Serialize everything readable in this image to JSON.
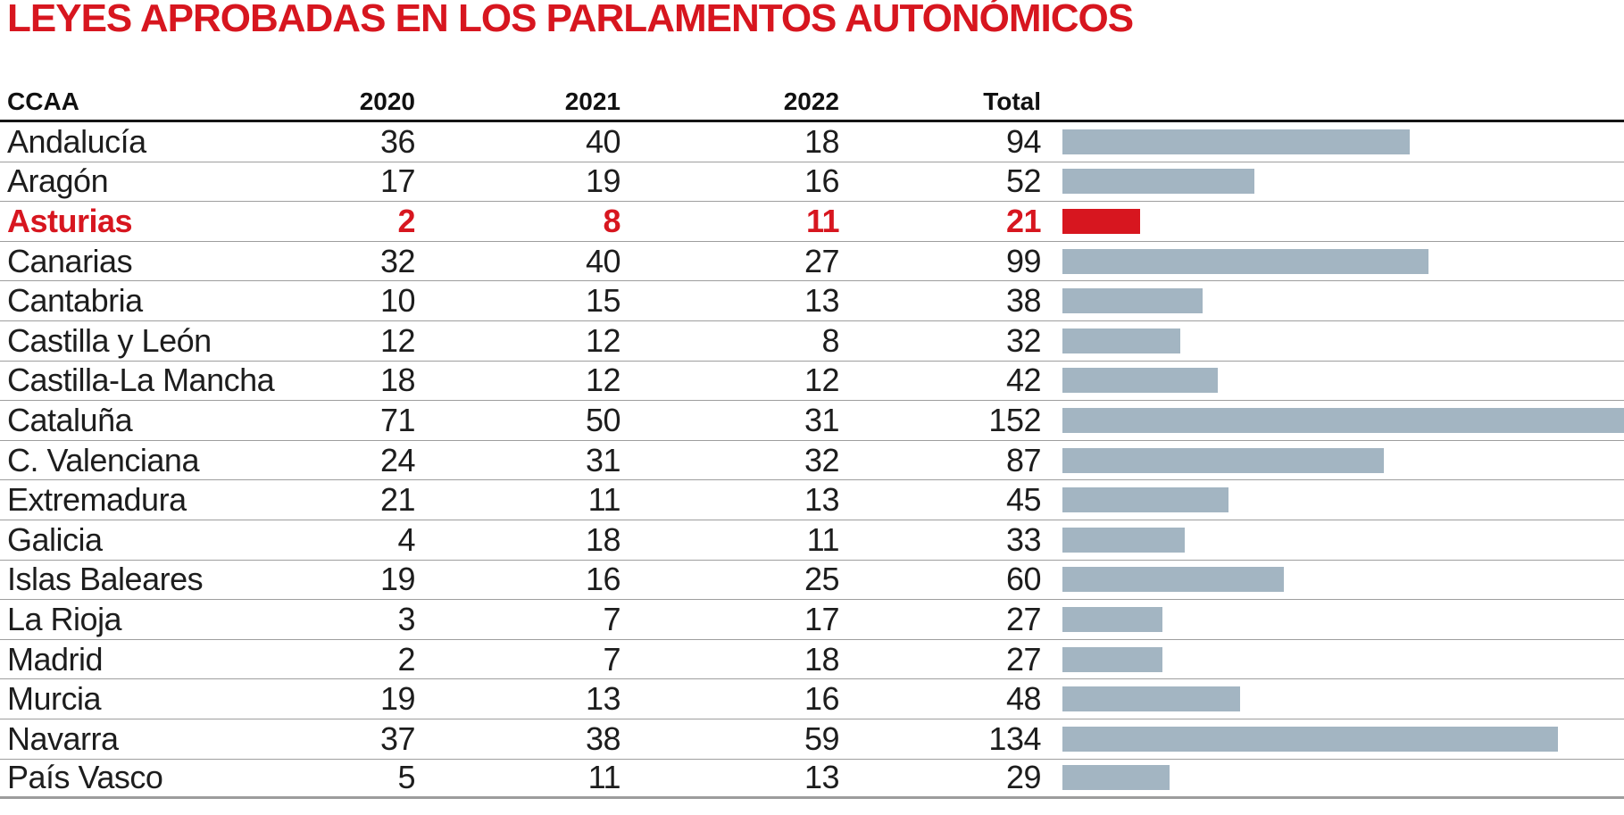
{
  "title": "LEYES APROBADAS EN LOS PARLAMENTOS AUTONÓMICOS",
  "colors": {
    "accent_red": "#d7161f",
    "bar_blue": "#a3b5c2",
    "header_rule": "#151515",
    "row_rule": "#9e9e9e"
  },
  "table": {
    "columns": [
      "CCAA",
      "2020",
      "2021",
      "2022",
      "Total"
    ]
  },
  "chart_data": {
    "type": "bar",
    "orientation": "horizontal",
    "title": "LEYES APROBADAS EN LOS PARLAMENTOS AUTONÓMICOS",
    "categories": [
      "Andalucía",
      "Aragón",
      "Asturias",
      "Canarias",
      "Cantabria",
      "Castilla y León",
      "Castilla-La Mancha",
      "Cataluña",
      "C. Valenciana",
      "Extremadura",
      "Galicia",
      "Islas Baleares",
      "La Rioja",
      "Madrid",
      "Murcia",
      "Navarra",
      "País Vasco"
    ],
    "series": [
      {
        "name": "2020",
        "values": [
          36,
          17,
          2,
          32,
          10,
          12,
          18,
          71,
          24,
          21,
          4,
          19,
          3,
          2,
          19,
          37,
          5
        ]
      },
      {
        "name": "2021",
        "values": [
          40,
          19,
          8,
          40,
          15,
          12,
          12,
          50,
          31,
          11,
          18,
          16,
          7,
          7,
          13,
          38,
          11
        ]
      },
      {
        "name": "2022",
        "values": [
          18,
          16,
          11,
          27,
          13,
          8,
          12,
          31,
          32,
          13,
          11,
          25,
          17,
          18,
          16,
          59,
          13
        ]
      },
      {
        "name": "Total",
        "values": [
          94,
          52,
          21,
          99,
          38,
          32,
          42,
          152,
          87,
          45,
          33,
          60,
          27,
          27,
          48,
          134,
          29
        ]
      }
    ],
    "bars_plotted_from": "Total",
    "xlim": [
      0,
      152
    ],
    "grid": false,
    "legend": false,
    "highlight_category": "Asturias",
    "highlight_index": 2,
    "highlight_color": "#d7161f",
    "bar_color": "#a3b5c2"
  }
}
